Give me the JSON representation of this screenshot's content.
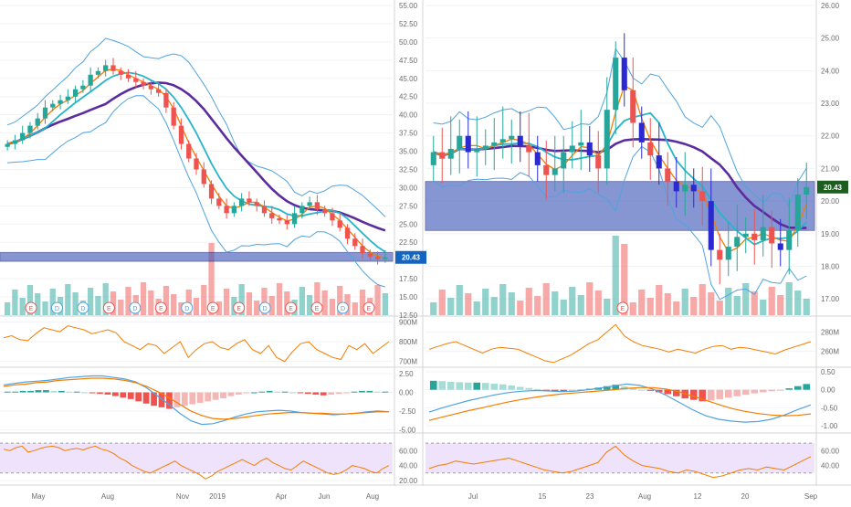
{
  "colors": {
    "up": "#26a69a",
    "down": "#ef5350",
    "candle_up_right": "#26a69a",
    "candle_down_blue": "#2a2ad0",
    "bb": "#4fa3e0",
    "ma_slow": "#5b2c9e",
    "ma_fast": "#f57c00",
    "ma_mid": "#26b5c9",
    "zone": "#3d57b8",
    "macd_line": "#4fa3e0",
    "signal_line": "#f57c00",
    "oscillator": "#f57c00",
    "rsi_band": "#efe3fb",
    "price_badge": "#1565c0",
    "grid": "#f0f3fa",
    "axis_text": "#6b6b6b",
    "sep": "#d6d6d6"
  },
  "chart_data": [
    {
      "id": "left-price",
      "type": "candlestick",
      "title": "",
      "yticks": [
        "55.00",
        "52.50",
        "50.00",
        "47.50",
        "45.00",
        "42.50",
        "40.00",
        "37.50",
        "35.00",
        "32.50",
        "30.00",
        "27.50",
        "25.00",
        "22.50",
        "20.00",
        "17.50",
        "15.00",
        "12.50"
      ],
      "ylim": [
        12.5,
        55.0
      ],
      "xlabels": [
        "May",
        "Aug",
        "Nov",
        "2019",
        "Apr",
        "Jun",
        "Aug"
      ],
      "last_price": "20.43",
      "events": [
        "E",
        "D",
        "D",
        "E",
        "D",
        "E",
        "D",
        "E",
        "E",
        "D",
        "E",
        "E",
        "D",
        "E"
      ],
      "candles": [
        36.0,
        36.5,
        37.5,
        38.5,
        39.5,
        41.0,
        41.5,
        42.0,
        42.5,
        43.5,
        44.0,
        45.5,
        46.0,
        46.8,
        46.0,
        45.5,
        45.0,
        44.5,
        44.0,
        43.5,
        43.0,
        41.0,
        38.5,
        36.0,
        34.0,
        32.5,
        30.5,
        28.5,
        27.5,
        26.5,
        27.5,
        28.5,
        28.0,
        27.5,
        26.5,
        25.8,
        25.5,
        25.0,
        26.5,
        27.5,
        28.0,
        27.0,
        26.5,
        25.5,
        24.5,
        23.0,
        22.0,
        21.0,
        20.5,
        20.2,
        20.43
      ]
    },
    {
      "id": "right-price",
      "type": "candlestick",
      "title": "",
      "yticks": [
        "26.00",
        "25.00",
        "24.00",
        "23.00",
        "22.00",
        "21.00",
        "20.00",
        "19.00",
        "18.00",
        "17.00"
      ],
      "ylim": [
        16.5,
        26.0
      ],
      "xlabels": [
        "Jul",
        "15",
        "23",
        "Aug",
        "12",
        "20",
        "Sep"
      ],
      "last_price": "20.43",
      "events": [
        "E"
      ],
      "candles": [
        21.5,
        21.3,
        21.6,
        22.0,
        21.5,
        21.6,
        21.7,
        21.8,
        21.9,
        22.0,
        21.7,
        21.5,
        21.1,
        20.8,
        21.0,
        21.5,
        21.7,
        21.8,
        21.4,
        21.0,
        22.8,
        24.4,
        23.4,
        22.4,
        21.8,
        21.4,
        21.0,
        20.6,
        20.3,
        20.5,
        20.3,
        20.0,
        18.5,
        18.2,
        18.6,
        18.9,
        19.0,
        18.8,
        19.2,
        18.7,
        18.5,
        19.1,
        20.2,
        20.43
      ]
    },
    {
      "id": "left-volume-osc",
      "type": "line",
      "title": "",
      "yticks": [
        "900M",
        "800M",
        "700M"
      ],
      "ylim": [
        680,
        920
      ],
      "values": [
        820,
        830,
        810,
        805,
        840,
        870,
        860,
        850,
        880,
        870,
        860,
        840,
        850,
        860,
        845,
        800,
        780,
        760,
        790,
        780,
        740,
        770,
        800,
        720,
        760,
        790,
        800,
        770,
        760,
        790,
        810,
        760,
        740,
        780,
        720,
        700,
        750,
        790,
        800,
        760,
        740,
        720,
        710,
        780,
        760,
        790,
        740,
        770,
        800
      ]
    },
    {
      "id": "right-volume-osc",
      "type": "line",
      "title": "",
      "yticks": [
        "280M",
        "260M"
      ],
      "ylim": [
        245,
        295
      ],
      "values": [
        262,
        265,
        268,
        270,
        266,
        262,
        258,
        262,
        264,
        263,
        262,
        258,
        254,
        250,
        248,
        252,
        256,
        262,
        268,
        272,
        280,
        288,
        276,
        270,
        266,
        264,
        262,
        259,
        262,
        260,
        258,
        262,
        265,
        266,
        262,
        264,
        263,
        261,
        259,
        257,
        261,
        264,
        267,
        270
      ]
    },
    {
      "id": "left-macd",
      "type": "bar",
      "title": "",
      "yticks": [
        "2.50",
        "0.00",
        "-2.50",
        "-5.00"
      ],
      "ylim": [
        -5.2,
        3.0
      ],
      "histogram": [
        0.1,
        0.1,
        0.2,
        0.2,
        0.3,
        0.3,
        0.2,
        0.2,
        0.1,
        0.1,
        0.0,
        -0.1,
        -0.2,
        -0.3,
        -0.5,
        -0.7,
        -0.9,
        -1.2,
        -1.5,
        -1.8,
        -2.0,
        -2.2,
        -2.0,
        -1.8,
        -1.6,
        -1.4,
        -1.2,
        -1.0,
        -0.8,
        -0.5,
        -0.3,
        -0.1,
        0.0,
        0.1,
        0.2,
        0.1,
        0.1,
        0.0,
        -0.1,
        -0.2,
        -0.3,
        -0.4,
        -0.3,
        -0.2,
        -0.1,
        0.1,
        0.2,
        0.2,
        0.1,
        0.1
      ],
      "macd": [
        1.0,
        1.2,
        1.4,
        1.5,
        1.6,
        1.8,
        2.0,
        2.1,
        2.2,
        2.2,
        2.0,
        1.8,
        1.4,
        0.6,
        -0.5,
        -1.6,
        -2.8,
        -3.8,
        -4.3,
        -4.2,
        -3.8,
        -3.3,
        -2.9,
        -2.6,
        -2.5,
        -2.4,
        -2.5,
        -2.7,
        -2.8,
        -2.9,
        -3.0,
        -2.9,
        -2.8,
        -2.6,
        -2.5,
        -2.6
      ],
      "signal": [
        0.8,
        1.0,
        1.1,
        1.3,
        1.4,
        1.6,
        1.7,
        1.8,
        1.9,
        1.9,
        1.8,
        1.6,
        1.3,
        0.8,
        0.1,
        -0.7,
        -1.6,
        -2.5,
        -3.1,
        -3.5,
        -3.6,
        -3.5,
        -3.3,
        -3.1,
        -2.9,
        -2.8,
        -2.7,
        -2.7,
        -2.8,
        -2.8,
        -2.9,
        -2.9,
        -2.8,
        -2.7,
        -2.6,
        -2.6
      ]
    },
    {
      "id": "right-macd",
      "type": "bar",
      "title": "",
      "yticks": [
        "0.50",
        "0.00",
        "-0.50",
        "-1.00"
      ],
      "ylim": [
        -1.15,
        0.55
      ],
      "histogram": [
        0.25,
        0.24,
        0.22,
        0.21,
        0.2,
        0.2,
        0.19,
        0.17,
        0.15,
        0.12,
        0.08,
        0.05,
        0.02,
        -0.02,
        -0.05,
        -0.06,
        -0.04,
        0.0,
        0.03,
        0.06,
        0.1,
        0.14,
        0.09,
        0.04,
        0.0,
        -0.03,
        -0.07,
        -0.12,
        -0.18,
        -0.24,
        -0.28,
        -0.32,
        -0.3,
        -0.26,
        -0.22,
        -0.18,
        -0.14,
        -0.1,
        -0.07,
        -0.04,
        -0.01,
        0.04,
        0.1,
        0.16
      ],
      "macd": [
        -0.62,
        -0.5,
        -0.4,
        -0.3,
        -0.22,
        -0.14,
        -0.08,
        -0.04,
        -0.02,
        -0.03,
        -0.05,
        -0.04,
        0.0,
        0.05,
        0.1,
        0.16,
        0.12,
        0.02,
        -0.15,
        -0.35,
        -0.55,
        -0.72,
        -0.82,
        -0.87,
        -0.9,
        -0.88,
        -0.82,
        -0.7,
        -0.55,
        -0.42
      ],
      "signal": [
        -0.85,
        -0.76,
        -0.67,
        -0.58,
        -0.5,
        -0.42,
        -0.34,
        -0.27,
        -0.21,
        -0.16,
        -0.12,
        -0.09,
        -0.06,
        -0.03,
        0.0,
        0.04,
        0.06,
        0.06,
        0.02,
        -0.06,
        -0.17,
        -0.29,
        -0.41,
        -0.52,
        -0.6,
        -0.66,
        -0.7,
        -0.72,
        -0.71,
        -0.67
      ]
    },
    {
      "id": "left-rsi",
      "type": "line",
      "title": "",
      "yticks": [
        "60.00",
        "40.00",
        "20.00"
      ],
      "ylim": [
        15,
        80
      ],
      "band": [
        30,
        70
      ],
      "values": [
        62,
        60,
        64,
        66,
        58,
        60,
        63,
        65,
        66,
        64,
        60,
        62,
        63,
        61,
        64,
        66,
        62,
        60,
        56,
        50,
        46,
        40,
        36,
        32,
        30,
        34,
        38,
        42,
        46,
        40,
        36,
        32,
        28,
        22,
        26,
        32,
        36,
        40,
        44,
        48,
        44,
        40,
        46,
        50,
        44,
        40,
        36,
        34,
        40,
        46,
        42,
        38,
        34,
        30,
        28,
        30,
        34,
        40,
        38,
        36,
        32,
        30,
        36,
        40
      ]
    },
    {
      "id": "right-rsi",
      "type": "line",
      "title": "",
      "yticks": [
        "60.00",
        "40.00"
      ],
      "ylim": [
        15,
        80
      ],
      "band": [
        30,
        70
      ],
      "values": [
        36,
        40,
        42,
        46,
        44,
        42,
        44,
        46,
        48,
        50,
        46,
        42,
        38,
        34,
        32,
        30,
        32,
        36,
        40,
        44,
        58,
        66,
        54,
        46,
        40,
        38,
        36,
        32,
        30,
        34,
        32,
        28,
        24,
        26,
        30,
        34,
        36,
        34,
        38,
        36,
        34,
        40,
        46,
        52
      ]
    }
  ]
}
